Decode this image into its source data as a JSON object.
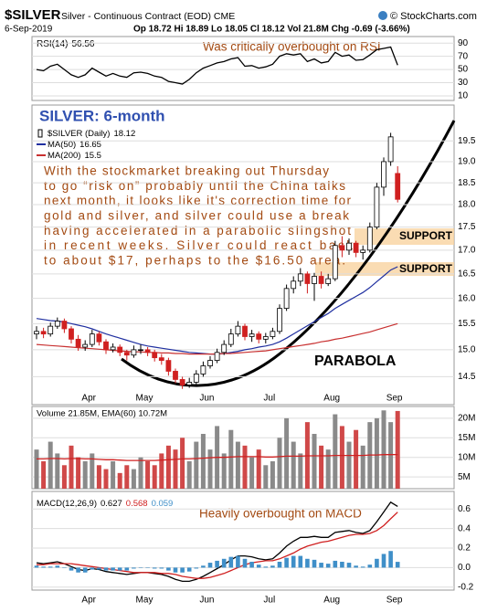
{
  "header": {
    "symbol": "$SILVER",
    "description": "Silver - Continuous Contract (EOD) CME",
    "copyright": "© StockCharts.com",
    "date": "6-Sep-2019",
    "quote": "Op 18.72 Hi 18.89 Lo 18.05 Cl 18.12 Vol 21.8M Chg -0.69 (-3.66%)"
  },
  "chart_data": [
    {
      "type": "line",
      "annotation": "Was critically overbought on RSI",
      "grid": true,
      "ylim": [
        3,
        100
      ],
      "yticks": [
        10,
        30,
        50,
        70,
        90
      ],
      "series": [
        {
          "name": "RSI(14)",
          "color": "#000000",
          "values": [
            50,
            48,
            55,
            58,
            50,
            42,
            38,
            42,
            52,
            46,
            40,
            44,
            40,
            38,
            45,
            46,
            44,
            40,
            38,
            32,
            30,
            28,
            35,
            45,
            52,
            56,
            60,
            62,
            66,
            68,
            55,
            56,
            52,
            54,
            58,
            70,
            74,
            72,
            74,
            62,
            66,
            60,
            62,
            76,
            70,
            72,
            64,
            65,
            72,
            80,
            82,
            84,
            56.56
          ]
        }
      ]
    },
    {
      "type": "candlestick",
      "title": "SILVER: 6-month",
      "name": "$SILVER (Daily)",
      "log_scale": true,
      "grid": true,
      "up_color": "#000000",
      "down_color": "#d02020",
      "ylim": [
        14.0,
        20.4
      ],
      "yticks": [
        14.5,
        {
          "value": 15,
          "label": "15.0"
        },
        15.5,
        {
          "value": 16,
          "label": "16.0"
        },
        16.5,
        {
          "value": 17,
          "label": "17.0"
        },
        17.5,
        {
          "value": 18,
          "label": "18.0"
        },
        18.5,
        {
          "value": 19,
          "label": "19.0"
        },
        19.5
      ],
      "categories": [
        null,
        null,
        null,
        null,
        null,
        null,
        null,
        "Apr",
        null,
        null,
        null,
        null,
        null,
        null,
        null,
        "May",
        null,
        null,
        null,
        null,
        null,
        null,
        null,
        null,
        "Jun",
        null,
        null,
        null,
        null,
        null,
        null,
        null,
        null,
        "Jul",
        null,
        null,
        null,
        null,
        null,
        null,
        null,
        null,
        "Aug",
        null,
        null,
        null,
        null,
        null,
        null,
        null,
        null,
        "Sep",
        null
      ],
      "open": [
        15.3,
        15.35,
        15.3,
        15.45,
        15.55,
        15.4,
        15.2,
        15.05,
        15.1,
        15.3,
        15.15,
        15.0,
        15.05,
        14.95,
        14.9,
        15.0,
        15.0,
        14.95,
        14.85,
        14.8,
        14.6,
        14.45,
        14.35,
        14.4,
        14.55,
        14.7,
        14.8,
        14.95,
        15.1,
        15.3,
        15.45,
        15.25,
        15.3,
        15.2,
        15.25,
        15.35,
        15.8,
        16.2,
        16.35,
        16.5,
        16.3,
        16.45,
        16.3,
        16.4,
        17.1,
        17.0,
        17.15,
        16.95,
        17.0,
        17.5,
        18.4,
        19.0,
        18.72
      ],
      "high": [
        15.45,
        15.42,
        15.52,
        15.62,
        15.6,
        15.45,
        15.28,
        15.18,
        15.38,
        15.35,
        15.2,
        15.12,
        15.1,
        15.0,
        15.08,
        15.1,
        15.05,
        15.0,
        14.92,
        14.85,
        14.65,
        14.5,
        14.48,
        14.62,
        14.78,
        14.88,
        15.02,
        15.18,
        15.4,
        15.55,
        15.5,
        15.38,
        15.35,
        15.32,
        15.42,
        15.88,
        16.28,
        16.45,
        16.62,
        16.55,
        16.52,
        16.55,
        16.5,
        17.2,
        17.3,
        17.25,
        17.2,
        17.1,
        17.6,
        18.5,
        19.1,
        19.7,
        18.89
      ],
      "low": [
        15.2,
        15.22,
        15.25,
        15.4,
        15.32,
        15.12,
        14.98,
        14.98,
        15.05,
        15.08,
        14.92,
        14.95,
        14.88,
        14.8,
        14.85,
        14.92,
        14.88,
        14.78,
        14.72,
        14.52,
        14.38,
        14.28,
        14.3,
        14.35,
        14.5,
        14.65,
        14.75,
        14.9,
        15.05,
        15.25,
        15.18,
        15.15,
        15.12,
        15.12,
        15.2,
        15.3,
        15.75,
        16.1,
        16.25,
        16.1,
        15.95,
        16.2,
        16.25,
        16.35,
        16.85,
        16.9,
        16.85,
        16.8,
        16.95,
        17.45,
        18.2,
        18.9,
        18.05
      ],
      "close": [
        15.35,
        15.3,
        15.45,
        15.55,
        15.4,
        15.2,
        15.05,
        15.1,
        15.3,
        15.15,
        15.0,
        15.05,
        14.95,
        14.9,
        15.0,
        15.0,
        14.95,
        14.85,
        14.8,
        14.6,
        14.45,
        14.35,
        14.4,
        14.55,
        14.7,
        14.8,
        14.95,
        15.1,
        15.3,
        15.45,
        15.25,
        15.3,
        15.2,
        15.25,
        15.35,
        15.8,
        16.2,
        16.35,
        16.5,
        16.3,
        16.45,
        16.3,
        16.4,
        17.1,
        17.0,
        17.15,
        16.95,
        17.0,
        17.5,
        18.4,
        19.0,
        19.6,
        18.12
      ],
      "series": [
        {
          "name": "MA(50)",
          "color": "#1f2fa0",
          "values": [
            15.6,
            15.58,
            15.56,
            15.55,
            15.53,
            15.5,
            15.47,
            15.44,
            15.4,
            15.35,
            15.3,
            15.26,
            15.22,
            15.18,
            15.14,
            15.1,
            15.07,
            15.05,
            15.03,
            15.01,
            14.99,
            14.97,
            14.95,
            14.94,
            14.93,
            14.92,
            14.92,
            14.93,
            14.95,
            14.97,
            15.0,
            15.02,
            15.05,
            15.07,
            15.1,
            15.15,
            15.22,
            15.3,
            15.38,
            15.46,
            15.54,
            15.62,
            15.7,
            15.8,
            15.88,
            15.96,
            16.04,
            16.12,
            16.22,
            16.34,
            16.46,
            16.58,
            16.65
          ]
        },
        {
          "name": "MA(200)",
          "color": "#c83030",
          "values": [
            15.1,
            15.09,
            15.08,
            15.07,
            15.06,
            15.05,
            15.04,
            15.03,
            15.02,
            15.01,
            15.0,
            14.99,
            14.98,
            14.97,
            14.96,
            14.96,
            14.95,
            14.95,
            14.94,
            14.94,
            14.93,
            14.93,
            14.92,
            14.92,
            14.92,
            14.92,
            14.92,
            14.93,
            14.93,
            14.94,
            14.95,
            14.96,
            14.97,
            14.98,
            15.0,
            15.02,
            15.04,
            15.06,
            15.08,
            15.1,
            15.12,
            15.15,
            15.17,
            15.2,
            15.22,
            15.25,
            15.28,
            15.31,
            15.34,
            15.38,
            15.42,
            15.46,
            15.5
          ]
        }
      ],
      "annotation_lines": [
        "With the stockmarket breaking out Thursday",
        "to go “risk on” probably until the China talks",
        "next month, it looks like it's correction time for",
        "gold and silver, and silver could use a break",
        "having accelerated in a parabolic slingshot",
        "in recent weeks. Silver could react back",
        "to about $17, perhaps to the $16.50 area."
      ],
      "support_label": "SUPPORT",
      "parabola_label": "PARABOLA"
    },
    {
      "type": "bar",
      "legend": "Volume 21.85M, EMA(60) 10.72M",
      "grid": true,
      "ylim": [
        2,
        23
      ],
      "yticks": [
        {
          "value": 5,
          "label": "5M"
        },
        {
          "value": 10,
          "label": "10M"
        },
        {
          "value": 15,
          "label": "15M"
        },
        {
          "value": 20,
          "label": "20M"
        }
      ],
      "series": [
        {
          "up_color": "#8a8a8a",
          "down_color": "#d04848",
          "values": [
            12,
            9,
            14,
            11,
            8,
            13,
            10,
            9,
            11,
            8,
            7,
            9,
            6,
            8,
            7,
            10,
            9,
            8,
            11,
            13,
            12,
            15,
            9,
            14,
            16,
            12,
            18,
            11,
            17,
            14,
            13,
            10,
            12,
            8,
            9,
            15,
            20,
            14,
            11,
            19,
            16,
            13,
            12,
            21,
            18,
            14,
            17,
            13,
            19,
            20,
            22,
            19,
            21.85
          ]
        },
        {
          "type": "line",
          "color": "#d02020",
          "values": [
            9.6,
            9.6,
            9.7,
            9.7,
            9.6,
            9.7,
            9.7,
            9.6,
            9.6,
            9.5,
            9.4,
            9.4,
            9.3,
            9.2,
            9.2,
            9.2,
            9.2,
            9.2,
            9.3,
            9.4,
            9.5,
            9.6,
            9.6,
            9.7,
            9.8,
            9.9,
            10.0,
            10.0,
            10.1,
            10.2,
            10.2,
            10.2,
            10.2,
            10.1,
            10.1,
            10.2,
            10.3,
            10.3,
            10.3,
            10.4,
            10.4,
            10.4,
            10.4,
            10.5,
            10.5,
            10.5,
            10.5,
            10.5,
            10.6,
            10.6,
            10.7,
            10.7,
            10.72
          ]
        }
      ]
    },
    {
      "type": "line",
      "legend_label": "MACD(12,26,9)",
      "annotation": "Heavily overbought on MACD",
      "grid": true,
      "ylim": [
        -0.23,
        0.78
      ],
      "yticks": [
        -0.2,
        {
          "value": 0,
          "label": "0.0"
        },
        0.2,
        0.4,
        0.6
      ],
      "categories": [
        null,
        null,
        null,
        null,
        null,
        null,
        null,
        "Apr",
        null,
        null,
        null,
        null,
        null,
        null,
        null,
        "May",
        null,
        null,
        null,
        null,
        null,
        null,
        null,
        null,
        "Jun",
        null,
        null,
        null,
        null,
        null,
        null,
        null,
        null,
        "Jul",
        null,
        null,
        null,
        null,
        null,
        null,
        null,
        null,
        "Aug",
        null,
        null,
        null,
        null,
        null,
        null,
        null,
        null,
        "Sep",
        null
      ],
      "series": [
        {
          "color": "#000000",
          "values": [
            0.05,
            0.04,
            0.05,
            0.06,
            0.04,
            0.01,
            -0.02,
            -0.03,
            -0.01,
            -0.02,
            -0.04,
            -0.05,
            -0.06,
            -0.07,
            -0.06,
            -0.05,
            -0.05,
            -0.06,
            -0.07,
            -0.09,
            -0.12,
            -0.14,
            -0.14,
            -0.12,
            -0.09,
            -0.05,
            -0.01,
            0.03,
            0.08,
            0.12,
            0.12,
            0.11,
            0.09,
            0.08,
            0.09,
            0.15,
            0.22,
            0.27,
            0.31,
            0.31,
            0.32,
            0.31,
            0.31,
            0.36,
            0.37,
            0.38,
            0.36,
            0.35,
            0.38,
            0.47,
            0.57,
            0.67,
            0.627
          ]
        },
        {
          "color": "#d02020",
          "values": [
            0.03,
            0.03,
            0.04,
            0.04,
            0.04,
            0.04,
            0.03,
            0.02,
            0.01,
            0.0,
            -0.01,
            -0.02,
            -0.03,
            -0.04,
            -0.05,
            -0.05,
            -0.05,
            -0.05,
            -0.06,
            -0.06,
            -0.07,
            -0.09,
            -0.1,
            -0.11,
            -0.11,
            -0.1,
            -0.08,
            -0.06,
            -0.03,
            0.0,
            0.03,
            0.05,
            0.06,
            0.07,
            0.07,
            0.09,
            0.12,
            0.15,
            0.19,
            0.22,
            0.24,
            0.26,
            0.27,
            0.29,
            0.31,
            0.33,
            0.34,
            0.34,
            0.35,
            0.38,
            0.43,
            0.5,
            0.568
          ]
        },
        {
          "type": "bar",
          "color": "#3f8fc8",
          "values": [
            0.02,
            0.01,
            0.01,
            0.02,
            0.0,
            -0.03,
            -0.05,
            -0.05,
            -0.02,
            -0.02,
            -0.03,
            -0.03,
            -0.03,
            -0.03,
            -0.01,
            0.0,
            0.0,
            -0.01,
            -0.01,
            -0.03,
            -0.05,
            -0.05,
            -0.04,
            -0.01,
            0.02,
            0.05,
            0.07,
            0.09,
            0.11,
            0.12,
            0.09,
            0.06,
            0.03,
            0.01,
            0.02,
            0.06,
            0.1,
            0.12,
            0.12,
            0.09,
            0.08,
            0.05,
            0.04,
            0.07,
            0.06,
            0.05,
            0.02,
            0.01,
            0.03,
            0.09,
            0.14,
            0.17,
            0.059
          ]
        }
      ]
    }
  ]
}
